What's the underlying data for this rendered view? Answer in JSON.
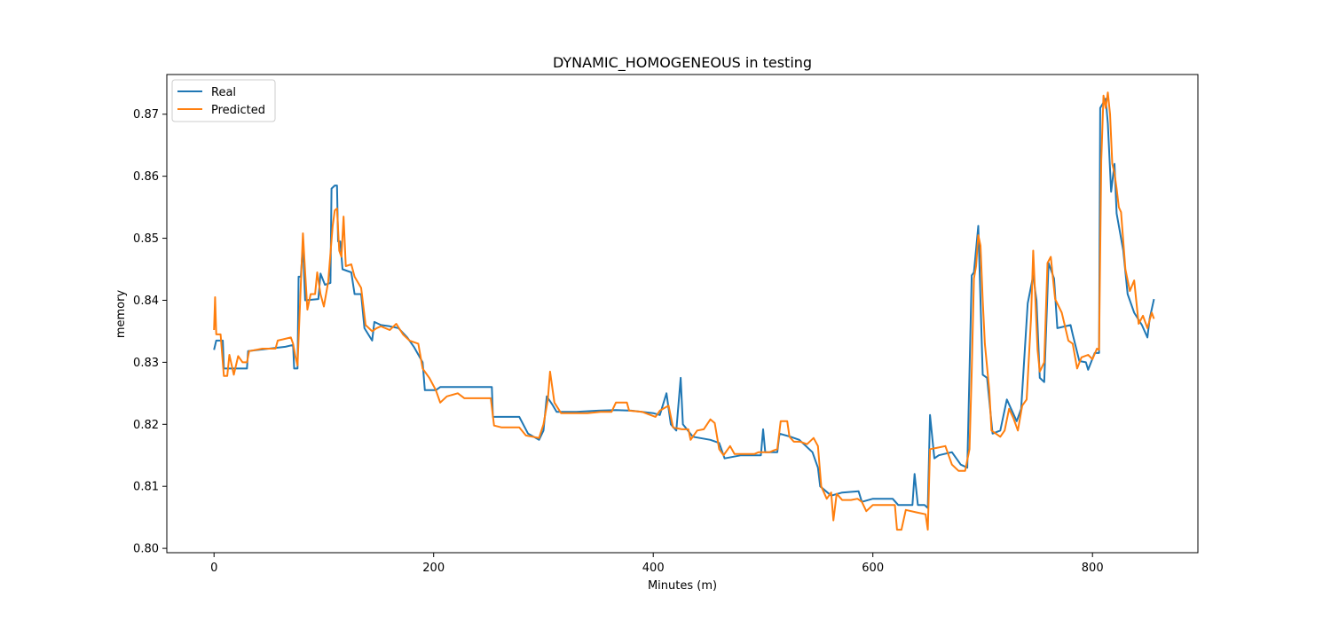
{
  "chart_data": {
    "type": "line",
    "title": "DYNAMIC_HOMOGENEOUS in testing",
    "xlabel": "Minutes (m)",
    "ylabel": "memory",
    "xlim": [
      -43,
      896
    ],
    "ylim": [
      0.7993,
      0.8764
    ],
    "x_ticks": [
      0,
      200,
      400,
      600,
      800
    ],
    "y_ticks": [
      0.8,
      0.81,
      0.82,
      0.83,
      0.84,
      0.85,
      0.86,
      0.87
    ],
    "x_tick_labels": [
      "0",
      "200",
      "400",
      "600",
      "800"
    ],
    "y_tick_labels": [
      "0.80",
      "0.81",
      "0.82",
      "0.83",
      "0.84",
      "0.85",
      "0.86",
      "0.87"
    ],
    "grid": false,
    "legend_position": "upper left",
    "series": [
      {
        "name": "Real",
        "color": "#1f77b4",
        "points": [
          [
            0,
            0.832
          ],
          [
            2,
            0.8335
          ],
          [
            8,
            0.8335
          ],
          [
            9,
            0.829
          ],
          [
            30,
            0.829
          ],
          [
            31,
            0.8318
          ],
          [
            50,
            0.8322
          ],
          [
            65,
            0.8325
          ],
          [
            72,
            0.8328
          ],
          [
            73,
            0.829
          ],
          [
            76,
            0.829
          ],
          [
            77,
            0.8438
          ],
          [
            79,
            0.8438
          ],
          [
            81,
            0.849
          ],
          [
            83,
            0.84
          ],
          [
            95,
            0.8402
          ],
          [
            97,
            0.8443
          ],
          [
            101,
            0.8425
          ],
          [
            106,
            0.8428
          ],
          [
            107,
            0.858
          ],
          [
            110,
            0.8585
          ],
          [
            112,
            0.8585
          ],
          [
            113,
            0.8495
          ],
          [
            115,
            0.8495
          ],
          [
            117,
            0.845
          ],
          [
            125,
            0.8445
          ],
          [
            128,
            0.841
          ],
          [
            134,
            0.841
          ],
          [
            137,
            0.8355
          ],
          [
            144,
            0.8335
          ],
          [
            146,
            0.8365
          ],
          [
            152,
            0.836
          ],
          [
            160,
            0.8358
          ],
          [
            168,
            0.8355
          ],
          [
            176,
            0.834
          ],
          [
            182,
            0.8325
          ],
          [
            190,
            0.83
          ],
          [
            192,
            0.8255
          ],
          [
            202,
            0.8255
          ],
          [
            206,
            0.826
          ],
          [
            253,
            0.826
          ],
          [
            254,
            0.8212
          ],
          [
            278,
            0.8212
          ],
          [
            286,
            0.8185
          ],
          [
            296,
            0.8175
          ],
          [
            300,
            0.819
          ],
          [
            303,
            0.8245
          ],
          [
            308,
            0.8232
          ],
          [
            312,
            0.822
          ],
          [
            330,
            0.822
          ],
          [
            350,
            0.8222
          ],
          [
            366,
            0.8223
          ],
          [
            380,
            0.8222
          ],
          [
            400,
            0.8218
          ],
          [
            406,
            0.8215
          ],
          [
            412,
            0.825
          ],
          [
            416,
            0.82
          ],
          [
            421,
            0.819
          ],
          [
            425,
            0.8275
          ],
          [
            427,
            0.82
          ],
          [
            436,
            0.818
          ],
          [
            452,
            0.8175
          ],
          [
            460,
            0.817
          ],
          [
            465,
            0.8145
          ],
          [
            480,
            0.815
          ],
          [
            498,
            0.815
          ],
          [
            500,
            0.8192
          ],
          [
            502,
            0.8155
          ],
          [
            513,
            0.8155
          ],
          [
            515,
            0.8185
          ],
          [
            525,
            0.818
          ],
          [
            533,
            0.8175
          ],
          [
            545,
            0.8155
          ],
          [
            550,
            0.813
          ],
          [
            552,
            0.81
          ],
          [
            562,
            0.8085
          ],
          [
            572,
            0.809
          ],
          [
            587,
            0.8092
          ],
          [
            590,
            0.8075
          ],
          [
            600,
            0.808
          ],
          [
            618,
            0.808
          ],
          [
            623,
            0.807
          ],
          [
            636,
            0.807
          ],
          [
            638,
            0.812
          ],
          [
            641,
            0.807
          ],
          [
            647,
            0.807
          ],
          [
            650,
            0.8065
          ],
          [
            652,
            0.8215
          ],
          [
            656,
            0.8145
          ],
          [
            660,
            0.815
          ],
          [
            672,
            0.8155
          ],
          [
            680,
            0.8135
          ],
          [
            686,
            0.813
          ],
          [
            690,
            0.844
          ],
          [
            692,
            0.8445
          ],
          [
            696,
            0.852
          ],
          [
            700,
            0.828
          ],
          [
            704,
            0.8275
          ],
          [
            709,
            0.8185
          ],
          [
            716,
            0.819
          ],
          [
            722,
            0.824
          ],
          [
            731,
            0.8205
          ],
          [
            735,
            0.8225
          ],
          [
            741,
            0.8395
          ],
          [
            746,
            0.844
          ],
          [
            749,
            0.84
          ],
          [
            752,
            0.8275
          ],
          [
            756,
            0.8268
          ],
          [
            760,
            0.846
          ],
          [
            765,
            0.8435
          ],
          [
            768,
            0.8355
          ],
          [
            780,
            0.836
          ],
          [
            782,
            0.8345
          ],
          [
            788,
            0.8302
          ],
          [
            794,
            0.83
          ],
          [
            796,
            0.8288
          ],
          [
            802,
            0.8315
          ],
          [
            806,
            0.8315
          ],
          [
            807,
            0.871
          ],
          [
            812,
            0.8725
          ],
          [
            814,
            0.8685
          ],
          [
            817,
            0.8575
          ],
          [
            820,
            0.862
          ],
          [
            822,
            0.854
          ],
          [
            828,
            0.848
          ],
          [
            832,
            0.841
          ],
          [
            838,
            0.838
          ],
          [
            845,
            0.836
          ],
          [
            850,
            0.834
          ],
          [
            852,
            0.837
          ],
          [
            856,
            0.8402
          ]
        ]
      },
      {
        "name": "Predicted",
        "color": "#ff7f0e",
        "points": [
          [
            0,
            0.8352
          ],
          [
            1,
            0.8405
          ],
          [
            2,
            0.8345
          ],
          [
            6,
            0.8345
          ],
          [
            9,
            0.8278
          ],
          [
            12,
            0.8278
          ],
          [
            14,
            0.8312
          ],
          [
            18,
            0.828
          ],
          [
            22,
            0.831
          ],
          [
            26,
            0.83
          ],
          [
            30,
            0.83
          ],
          [
            32,
            0.8318
          ],
          [
            44,
            0.8322
          ],
          [
            56,
            0.8322
          ],
          [
            58,
            0.8335
          ],
          [
            70,
            0.834
          ],
          [
            72,
            0.833
          ],
          [
            74,
            0.831
          ],
          [
            76,
            0.8295
          ],
          [
            79,
            0.8425
          ],
          [
            81,
            0.8508
          ],
          [
            83,
            0.8445
          ],
          [
            85,
            0.8385
          ],
          [
            88,
            0.841
          ],
          [
            92,
            0.841
          ],
          [
            94,
            0.8445
          ],
          [
            97,
            0.841
          ],
          [
            100,
            0.839
          ],
          [
            104,
            0.843
          ],
          [
            108,
            0.852
          ],
          [
            110,
            0.8545
          ],
          [
            112,
            0.8548
          ],
          [
            114,
            0.848
          ],
          [
            116,
            0.847
          ],
          [
            118,
            0.8535
          ],
          [
            120,
            0.8455
          ],
          [
            125,
            0.8458
          ],
          [
            128,
            0.8438
          ],
          [
            134,
            0.842
          ],
          [
            138,
            0.836
          ],
          [
            144,
            0.835
          ],
          [
            148,
            0.8355
          ],
          [
            152,
            0.8358
          ],
          [
            160,
            0.8352
          ],
          [
            166,
            0.8362
          ],
          [
            172,
            0.8345
          ],
          [
            178,
            0.8335
          ],
          [
            186,
            0.833
          ],
          [
            190,
            0.829
          ],
          [
            196,
            0.8275
          ],
          [
            202,
            0.8255
          ],
          [
            206,
            0.8235
          ],
          [
            212,
            0.8245
          ],
          [
            222,
            0.825
          ],
          [
            228,
            0.8242
          ],
          [
            252,
            0.8242
          ],
          [
            255,
            0.8198
          ],
          [
            262,
            0.8195
          ],
          [
            278,
            0.8195
          ],
          [
            284,
            0.8182
          ],
          [
            296,
            0.8178
          ],
          [
            300,
            0.82
          ],
          [
            304,
            0.824
          ],
          [
            306,
            0.8285
          ],
          [
            310,
            0.8235
          ],
          [
            316,
            0.8218
          ],
          [
            328,
            0.8218
          ],
          [
            340,
            0.8218
          ],
          [
            352,
            0.822
          ],
          [
            362,
            0.822
          ],
          [
            366,
            0.8235
          ],
          [
            376,
            0.8235
          ],
          [
            378,
            0.8222
          ],
          [
            390,
            0.822
          ],
          [
            402,
            0.8212
          ],
          [
            406,
            0.8222
          ],
          [
            414,
            0.823
          ],
          [
            418,
            0.8195
          ],
          [
            426,
            0.8192
          ],
          [
            432,
            0.8192
          ],
          [
            434,
            0.8175
          ],
          [
            440,
            0.819
          ],
          [
            446,
            0.8192
          ],
          [
            452,
            0.8208
          ],
          [
            456,
            0.8202
          ],
          [
            460,
            0.816
          ],
          [
            464,
            0.815
          ],
          [
            470,
            0.8165
          ],
          [
            474,
            0.8152
          ],
          [
            480,
            0.8152
          ],
          [
            492,
            0.8152
          ],
          [
            496,
            0.8155
          ],
          [
            506,
            0.8155
          ],
          [
            510,
            0.8158
          ],
          [
            513,
            0.816
          ],
          [
            516,
            0.8205
          ],
          [
            522,
            0.8205
          ],
          [
            524,
            0.818
          ],
          [
            528,
            0.8172
          ],
          [
            534,
            0.8172
          ],
          [
            540,
            0.8168
          ],
          [
            546,
            0.8178
          ],
          [
            550,
            0.8165
          ],
          [
            553,
            0.81
          ],
          [
            558,
            0.808
          ],
          [
            562,
            0.809
          ],
          [
            564,
            0.8045
          ],
          [
            567,
            0.8088
          ],
          [
            572,
            0.8078
          ],
          [
            580,
            0.8078
          ],
          [
            586,
            0.808
          ],
          [
            590,
            0.8075
          ],
          [
            594,
            0.806
          ],
          [
            600,
            0.807
          ],
          [
            615,
            0.807
          ],
          [
            620,
            0.807
          ],
          [
            622,
            0.803
          ],
          [
            626,
            0.803
          ],
          [
            630,
            0.8062
          ],
          [
            640,
            0.8058
          ],
          [
            648,
            0.8055
          ],
          [
            650,
            0.803
          ],
          [
            652,
            0.816
          ],
          [
            658,
            0.8162
          ],
          [
            666,
            0.8165
          ],
          [
            672,
            0.8135
          ],
          [
            678,
            0.8125
          ],
          [
            684,
            0.8125
          ],
          [
            688,
            0.816
          ],
          [
            690,
            0.8285
          ],
          [
            692,
            0.8435
          ],
          [
            694,
            0.8455
          ],
          [
            696,
            0.8505
          ],
          [
            698,
            0.8488
          ],
          [
            700,
            0.84
          ],
          [
            702,
            0.833
          ],
          [
            706,
            0.8255
          ],
          [
            708,
            0.819
          ],
          [
            716,
            0.818
          ],
          [
            720,
            0.819
          ],
          [
            724,
            0.8225
          ],
          [
            728,
            0.821
          ],
          [
            732,
            0.819
          ],
          [
            736,
            0.823
          ],
          [
            740,
            0.824
          ],
          [
            744,
            0.837
          ],
          [
            746,
            0.848
          ],
          [
            750,
            0.832
          ],
          [
            752,
            0.8285
          ],
          [
            756,
            0.83
          ],
          [
            759,
            0.846
          ],
          [
            762,
            0.847
          ],
          [
            766,
            0.8402
          ],
          [
            772,
            0.838
          ],
          [
            778,
            0.8335
          ],
          [
            782,
            0.833
          ],
          [
            786,
            0.829
          ],
          [
            790,
            0.8308
          ],
          [
            796,
            0.8312
          ],
          [
            800,
            0.8305
          ],
          [
            804,
            0.8322
          ],
          [
            806,
            0.832
          ],
          [
            808,
            0.8625
          ],
          [
            810,
            0.873
          ],
          [
            812,
            0.871
          ],
          [
            814,
            0.8735
          ],
          [
            816,
            0.87
          ],
          [
            818,
            0.862
          ],
          [
            820,
            0.8605
          ],
          [
            822,
            0.858
          ],
          [
            824,
            0.855
          ],
          [
            826,
            0.8542
          ],
          [
            830,
            0.845
          ],
          [
            834,
            0.8415
          ],
          [
            838,
            0.8432
          ],
          [
            842,
            0.8362
          ],
          [
            846,
            0.8375
          ],
          [
            850,
            0.8355
          ],
          [
            854,
            0.838
          ],
          [
            856,
            0.837
          ]
        ]
      }
    ]
  }
}
